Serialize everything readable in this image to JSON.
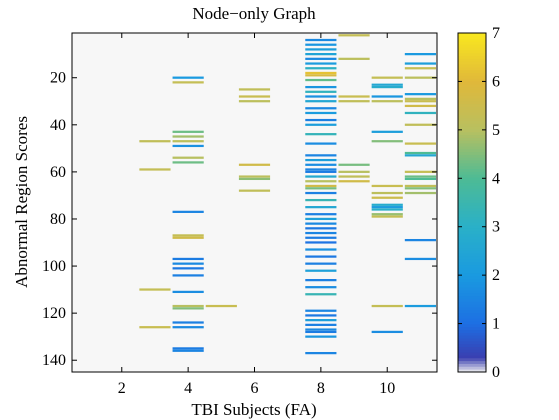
{
  "chart_data": {
    "type": "heatmap",
    "title": "Node−only Graph",
    "xlabel": "TBI Subjects (FA)",
    "ylabel": "Abnormal Region Scores",
    "xlim": [
      0.5,
      11.5
    ],
    "ylim": [
      145,
      1
    ],
    "x_ticks": [
      2,
      4,
      6,
      8,
      10
    ],
    "y_ticks": [
      20,
      40,
      60,
      80,
      100,
      120,
      140
    ],
    "colorbar": {
      "min": 0,
      "max": 7,
      "ticks": [
        0,
        1,
        2,
        3,
        4,
        5,
        6,
        7
      ],
      "colors": {
        "0": "#f0f0f0",
        "0.3": "#3a3fb0",
        "1": "#1d6fe3",
        "2": "#1a9ae0",
        "3": "#2ab0c8",
        "4": "#4dbb95",
        "5": "#b8c060",
        "6": "#e0b83a",
        "7": "#f9e81f"
      }
    },
    "background_value": 0,
    "series": [
      {
        "x": 3,
        "values": [
          [
            47,
            5.2
          ],
          [
            59,
            5.3
          ],
          [
            110,
            5.3
          ],
          [
            126,
            5.4
          ]
        ]
      },
      {
        "x": 4,
        "values": [
          [
            20,
            2.0
          ],
          [
            22,
            5.3
          ],
          [
            43,
            4.3
          ],
          [
            45,
            4.8
          ],
          [
            47,
            5.1
          ],
          [
            49,
            1.8
          ],
          [
            54,
            5.0
          ],
          [
            56,
            4.3
          ],
          [
            77,
            1.5
          ],
          [
            87,
            5.3
          ],
          [
            88,
            5.6
          ],
          [
            97,
            1.3
          ],
          [
            99,
            1.6
          ],
          [
            101,
            1.2
          ],
          [
            104,
            1.4
          ],
          [
            111,
            1.7
          ],
          [
            117,
            5.0
          ],
          [
            118,
            4.5
          ],
          [
            124,
            1.4
          ],
          [
            126,
            1.6
          ],
          [
            135,
            1.3
          ],
          [
            136,
            1.5
          ]
        ]
      },
      {
        "x": 5,
        "values": [
          [
            117,
            5.4
          ]
        ]
      },
      {
        "x": 6,
        "values": [
          [
            25,
            5.2
          ],
          [
            28,
            5.4
          ],
          [
            30,
            5.1
          ],
          [
            57,
            5.6
          ],
          [
            62,
            5.1
          ],
          [
            63,
            4.6
          ],
          [
            68,
            5.2
          ]
        ]
      },
      {
        "x": 8,
        "values": [
          [
            4,
            1.6
          ],
          [
            6,
            1.9
          ],
          [
            8,
            2.2
          ],
          [
            10,
            2.4
          ],
          [
            12,
            1.6
          ],
          [
            14,
            2.1
          ],
          [
            16,
            3.1
          ],
          [
            18,
            6.2
          ],
          [
            19,
            5.8
          ],
          [
            21,
            4.2
          ],
          [
            24,
            1.9
          ],
          [
            26,
            3.2
          ],
          [
            28,
            1.8
          ],
          [
            30,
            2.6
          ],
          [
            33,
            1.6
          ],
          [
            35,
            2.1
          ],
          [
            38,
            1.4
          ],
          [
            40,
            2.2
          ],
          [
            44,
            3.3
          ],
          [
            48,
            1.7
          ],
          [
            53,
            1.5
          ],
          [
            55,
            2.2
          ],
          [
            57,
            1.7
          ],
          [
            59,
            1.5
          ],
          [
            60,
            1.3
          ],
          [
            62,
            2.7
          ],
          [
            64,
            5.0
          ],
          [
            66,
            5.6
          ],
          [
            67,
            4.4
          ],
          [
            69,
            1.4
          ],
          [
            72,
            3.4
          ],
          [
            75,
            2.6
          ],
          [
            78,
            1.4
          ],
          [
            80,
            2.3
          ],
          [
            82,
            1.6
          ],
          [
            84,
            1.2
          ],
          [
            86,
            1.5
          ],
          [
            88,
            1.3
          ],
          [
            90,
            1.1
          ],
          [
            93,
            1.8
          ],
          [
            96,
            1.2
          ],
          [
            99,
            1.4
          ],
          [
            102,
            2.3
          ],
          [
            106,
            1.4
          ],
          [
            109,
            1.7
          ],
          [
            112,
            3.4
          ],
          [
            119,
            1.5
          ],
          [
            121,
            1.2
          ],
          [
            123,
            2.2
          ],
          [
            125,
            1.4
          ],
          [
            127,
            1.6
          ],
          [
            128,
            1.3
          ],
          [
            130,
            1.9
          ],
          [
            137,
            1.5
          ]
        ]
      },
      {
        "x": 9,
        "values": [
          [
            2,
            5.3
          ],
          [
            12,
            5.1
          ],
          [
            28,
            5.4
          ],
          [
            30,
            5.2
          ],
          [
            57,
            4.4
          ],
          [
            60,
            5.0
          ],
          [
            62,
            5.2
          ],
          [
            64,
            5.6
          ]
        ]
      },
      {
        "x": 10,
        "values": [
          [
            20,
            5.3
          ],
          [
            23,
            2.6
          ],
          [
            24,
            2.8
          ],
          [
            28,
            1.9
          ],
          [
            30,
            5.1
          ],
          [
            43,
            2.2
          ],
          [
            47,
            4.5
          ],
          [
            66,
            5.4
          ],
          [
            69,
            5.1
          ],
          [
            71,
            5.5
          ],
          [
            74,
            2.8
          ],
          [
            75,
            2.1
          ],
          [
            76,
            3.0
          ],
          [
            78,
            4.7
          ],
          [
            79,
            5.3
          ],
          [
            117,
            5.3
          ],
          [
            128,
            1.7
          ]
        ]
      },
      {
        "x": 11,
        "values": [
          [
            10,
            2.0
          ],
          [
            14,
            2.2
          ],
          [
            16,
            5.3
          ],
          [
            20,
            5.1
          ],
          [
            27,
            2.0
          ],
          [
            29,
            5.0
          ],
          [
            30,
            5.4
          ],
          [
            32,
            5.6
          ],
          [
            35,
            3.2
          ],
          [
            40,
            5.2
          ],
          [
            48,
            5.4
          ],
          [
            52,
            4.0
          ],
          [
            53,
            2.6
          ],
          [
            60,
            5.3
          ],
          [
            62,
            4.3
          ],
          [
            63,
            4.0
          ],
          [
            66,
            5.2
          ],
          [
            67,
            4.5
          ],
          [
            69,
            4.8
          ],
          [
            89,
            1.5
          ],
          [
            97,
            1.7
          ],
          [
            117,
            2.1
          ]
        ]
      }
    ]
  }
}
